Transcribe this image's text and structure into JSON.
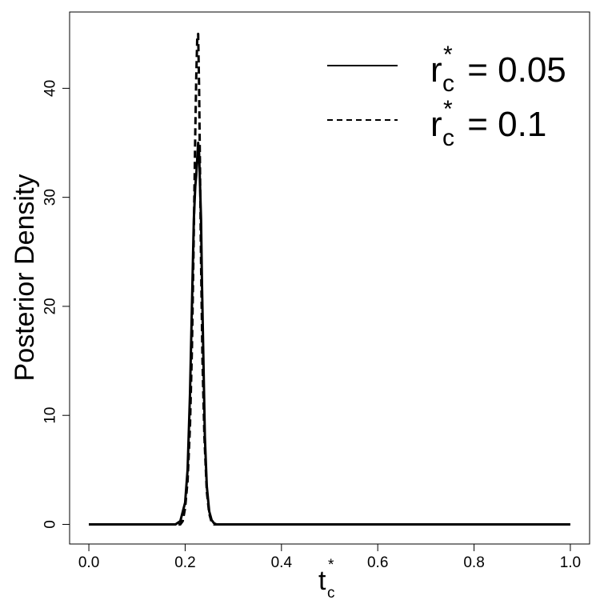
{
  "chart_data": {
    "type": "line",
    "title": "",
    "xlabel": {
      "base": "t",
      "subscript": "c",
      "superscript": "*"
    },
    "ylabel": "Posterior Density",
    "xlim": [
      -0.04,
      1.04
    ],
    "ylim": [
      -1.8,
      47.0
    ],
    "xticks": [
      0.0,
      0.2,
      0.4,
      0.6,
      0.8,
      1.0
    ],
    "xtick_labels": [
      "0.0",
      "0.2",
      "0.4",
      "0.6",
      "0.8",
      "1.0"
    ],
    "yticks": [
      0,
      10,
      20,
      30,
      40
    ],
    "ytick_labels": [
      "0",
      "10",
      "20",
      "30",
      "40"
    ],
    "grid": false,
    "legend_position": "top-right",
    "series": [
      {
        "name": "r_c^* = 0.05",
        "legend": {
          "base": "r",
          "subscript": "c",
          "superscript": "*",
          "rest": " = 0.05"
        },
        "style": "solid",
        "color": "#000000",
        "x": [
          0.0,
          0.18,
          0.19,
          0.2,
          0.205,
          0.21,
          0.215,
          0.218,
          0.221,
          0.223,
          0.225,
          0.227,
          0.229,
          0.231,
          0.233,
          0.235,
          0.238,
          0.241,
          0.245,
          0.25,
          0.255,
          0.26,
          0.265,
          0.27,
          1.0
        ],
        "y": [
          0,
          0,
          0.3,
          2,
          5,
          12,
          22,
          28,
          31,
          32,
          33.5,
          35,
          34,
          31,
          28,
          22,
          15,
          8,
          3.5,
          1.2,
          0.4,
          0.1,
          0,
          0,
          0
        ]
      },
      {
        "name": "r_c^* = 0.1",
        "legend": {
          "base": "r",
          "subscript": "c",
          "superscript": "*",
          "rest": " = 0.1"
        },
        "style": "dashed",
        "color": "#000000",
        "x": [
          0.0,
          0.19,
          0.195,
          0.2,
          0.205,
          0.21,
          0.214,
          0.217,
          0.219,
          0.221,
          0.223,
          0.225,
          0.227,
          0.229,
          0.231,
          0.233,
          0.236,
          0.24,
          0.245,
          0.25,
          0.255,
          0.26,
          1.0
        ],
        "y": [
          0,
          0,
          0.3,
          1.5,
          4,
          9,
          16,
          24,
          30,
          36,
          41,
          44.5,
          45,
          40,
          32,
          24,
          15,
          8,
          3,
          1,
          0.2,
          0,
          0
        ]
      }
    ]
  }
}
